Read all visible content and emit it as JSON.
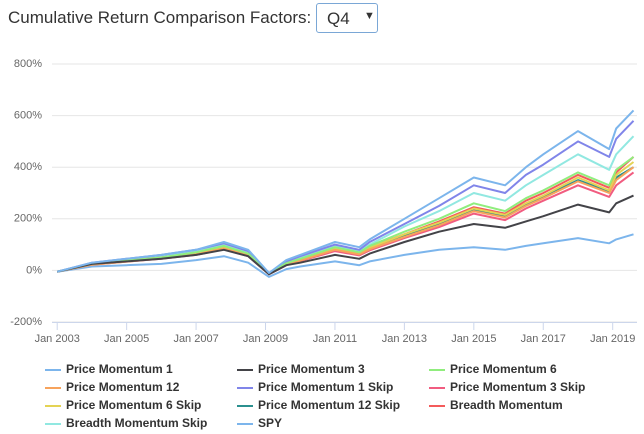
{
  "header": {
    "title": "Cumulative Return Comparison Factors:",
    "selected": "Q4"
  },
  "chart_data": {
    "type": "line",
    "x": [
      2003,
      2004,
      2005,
      2006,
      2007,
      2007.8,
      2008.5,
      2009.1,
      2009.6,
      2010,
      2011,
      2011.7,
      2012,
      2013,
      2014,
      2015,
      2015.9,
      2016.5,
      2017,
      2018,
      2018.9,
      2019.1,
      2019.6
    ],
    "xlim": [
      2002.85,
      2019.7
    ],
    "xticks": [
      {
        "value": 2003,
        "label": "Jan 2003"
      },
      {
        "value": 2005,
        "label": "Jan 2005"
      },
      {
        "value": 2007,
        "label": "Jan 2007"
      },
      {
        "value": 2009,
        "label": "Jan 2009"
      },
      {
        "value": 2011,
        "label": "Jan 2011"
      },
      {
        "value": 2013,
        "label": "Jan 2013"
      },
      {
        "value": 2015,
        "label": "Jan 2015"
      },
      {
        "value": 2017,
        "label": "Jan 2017"
      },
      {
        "value": 2019,
        "label": "Jan 2019"
      }
    ],
    "ylim": [
      -200,
      800
    ],
    "yticks": [
      {
        "value": -200,
        "label": "-200%"
      },
      {
        "value": 0,
        "label": "0%"
      },
      {
        "value": 200,
        "label": "200%"
      },
      {
        "value": 400,
        "label": "400%"
      },
      {
        "value": 600,
        "label": "600%"
      },
      {
        "value": 800,
        "label": "800%"
      }
    ],
    "grid": true,
    "series": [
      {
        "name": "Price Momentum 1",
        "color": "#7cb5ec",
        "values": [
          -5,
          30,
          45,
          60,
          80,
          110,
          80,
          -10,
          40,
          60,
          110,
          90,
          120,
          200,
          280,
          360,
          330,
          400,
          450,
          540,
          470,
          550,
          620
        ]
      },
      {
        "name": "Price Momentum 3",
        "color": "#434348",
        "values": [
          -5,
          25,
          35,
          45,
          60,
          80,
          55,
          -15,
          20,
          30,
          60,
          45,
          65,
          110,
          150,
          180,
          165,
          190,
          210,
          255,
          225,
          260,
          290
        ]
      },
      {
        "name": "Price Momentum 6",
        "color": "#90ed7d",
        "values": [
          -5,
          25,
          38,
          50,
          70,
          95,
          65,
          -12,
          28,
          45,
          90,
          70,
          95,
          150,
          200,
          260,
          230,
          280,
          310,
          380,
          330,
          390,
          440
        ]
      },
      {
        "name": "Price Momentum 12",
        "color": "#f7a35c",
        "values": [
          -5,
          22,
          34,
          46,
          62,
          85,
          58,
          -14,
          22,
          38,
          80,
          62,
          82,
          130,
          175,
          230,
          205,
          250,
          280,
          345,
          300,
          350,
          400
        ]
      },
      {
        "name": "Price Momentum 1 Skip",
        "color": "#8085e9",
        "values": [
          -5,
          30,
          45,
          60,
          80,
          105,
          75,
          -10,
          35,
          55,
          100,
          80,
          110,
          180,
          250,
          330,
          300,
          370,
          410,
          500,
          440,
          510,
          580
        ]
      },
      {
        "name": "Price Momentum 3 Skip",
        "color": "#f15c80",
        "values": [
          -5,
          22,
          34,
          45,
          60,
          82,
          55,
          -15,
          20,
          36,
          75,
          58,
          78,
          125,
          168,
          220,
          195,
          240,
          270,
          330,
          285,
          330,
          380
        ]
      },
      {
        "name": "Price Momentum 6 Skip",
        "color": "#e4d354",
        "values": [
          -5,
          24,
          36,
          48,
          66,
          90,
          60,
          -12,
          25,
          42,
          85,
          66,
          88,
          140,
          185,
          240,
          215,
          260,
          290,
          360,
          310,
          370,
          420
        ]
      },
      {
        "name": "Price Momentum 12 Skip",
        "color": "#2b908f",
        "values": [
          -5,
          24,
          36,
          48,
          64,
          88,
          60,
          -12,
          24,
          40,
          82,
          64,
          85,
          135,
          180,
          235,
          210,
          255,
          285,
          350,
          305,
          360,
          400
        ]
      },
      {
        "name": "Breadth Momentum",
        "color": "#f45b5b",
        "values": [
          -5,
          25,
          38,
          50,
          68,
          92,
          62,
          -12,
          25,
          42,
          85,
          68,
          90,
          140,
          190,
          245,
          220,
          270,
          300,
          370,
          320,
          380,
          440
        ]
      },
      {
        "name": "Breadth Momentum Skip",
        "color": "#91e8e1",
        "values": [
          -5,
          28,
          42,
          55,
          75,
          100,
          70,
          -10,
          30,
          50,
          95,
          75,
          100,
          170,
          230,
          300,
          270,
          330,
          370,
          450,
          390,
          450,
          520
        ]
      },
      {
        "name": "SPY",
        "color": "#7cb5ec",
        "values": [
          -5,
          15,
          20,
          25,
          40,
          55,
          30,
          -25,
          5,
          15,
          35,
          20,
          35,
          60,
          80,
          90,
          80,
          95,
          105,
          125,
          105,
          120,
          140
        ]
      }
    ]
  }
}
